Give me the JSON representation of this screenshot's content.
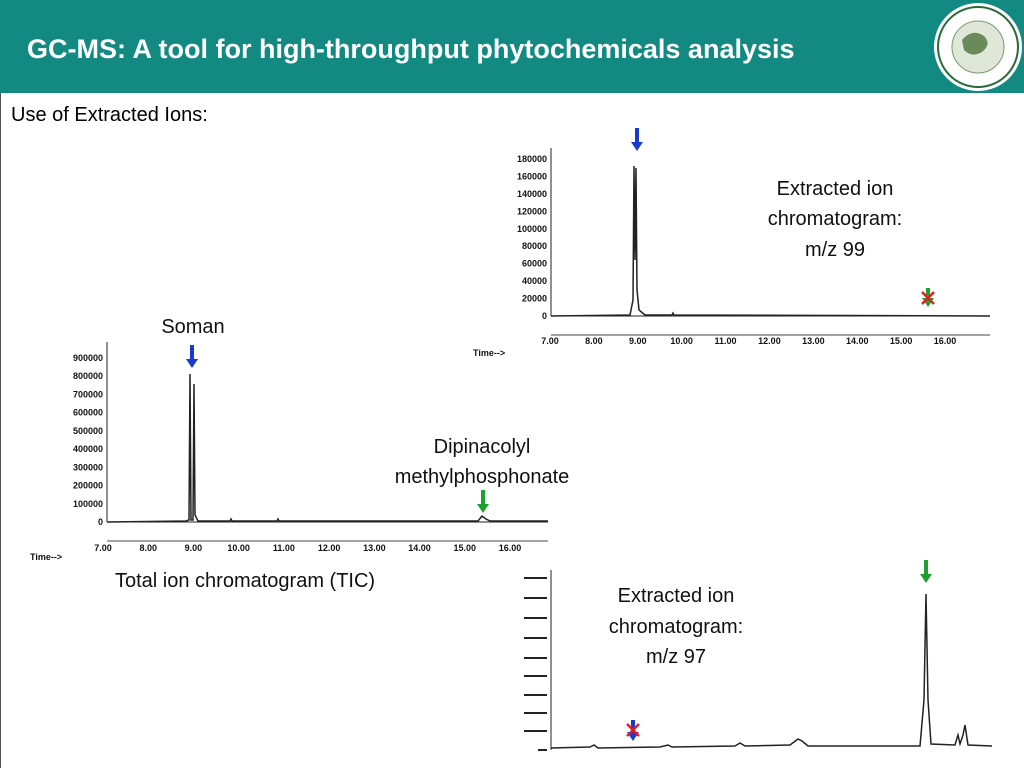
{
  "header": {
    "title": "GC-MS: A tool for high-throughput phytochemicals analysis"
  },
  "subtitle": "Use of Extracted Ions:",
  "panels": [
    {
      "x_ticks": [
        "7.00",
        "8.00",
        "9.00",
        "10.00",
        "11.00",
        "12.00",
        "13.00",
        "14.00",
        "15.00",
        "16.00"
      ],
      "y_ticks": [
        "900000",
        "800000",
        "700000",
        "600000",
        "500000",
        "400000",
        "300000",
        "200000",
        "100000",
        "0"
      ],
      "time_label": "Time-->",
      "caption": "Total ion chromatogram (TIC)",
      "annotations": [
        [
          "Soman"
        ],
        [
          "Dipinacolyl",
          "methylphosphonate"
        ]
      ]
    },
    {
      "x_ticks": [
        "7.00",
        "8.00",
        "9.00",
        "10.00",
        "11.00",
        "12.00",
        "13.00",
        "14.00",
        "15.00",
        "16.00"
      ],
      "y_ticks": [
        "180000",
        "160000",
        "140000",
        "120000",
        "100000",
        "80000",
        "60000",
        "40000",
        "20000",
        "0"
      ],
      "time_label": "Time-->",
      "annotations": [
        [
          "Extracted ion",
          "chromatogram:",
          "m/z 99"
        ]
      ]
    },
    {
      "annotations": [
        [
          "Extracted ion",
          "chromatogram:",
          "m/z 97"
        ]
      ]
    }
  ]
}
